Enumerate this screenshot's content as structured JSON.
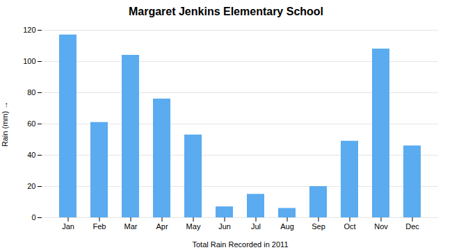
{
  "chart_data": {
    "type": "bar",
    "title": "Margaret Jenkins Elementary School",
    "xlabel": "Total Rain Recorded in 2011",
    "ylabel": "Rain (mm)",
    "categories": [
      "Jan",
      "Feb",
      "Mar",
      "Apr",
      "May",
      "Jun",
      "Jul",
      "Aug",
      "Sep",
      "Oct",
      "Nov",
      "Dec"
    ],
    "values": [
      117,
      61,
      104,
      76,
      53,
      7,
      15,
      6,
      20,
      49,
      108,
      46
    ],
    "color": "#5aabf0",
    "ylim": [
      0,
      120
    ],
    "yticks": [
      0,
      20,
      40,
      60,
      80,
      100,
      120
    ],
    "grid": true
  }
}
